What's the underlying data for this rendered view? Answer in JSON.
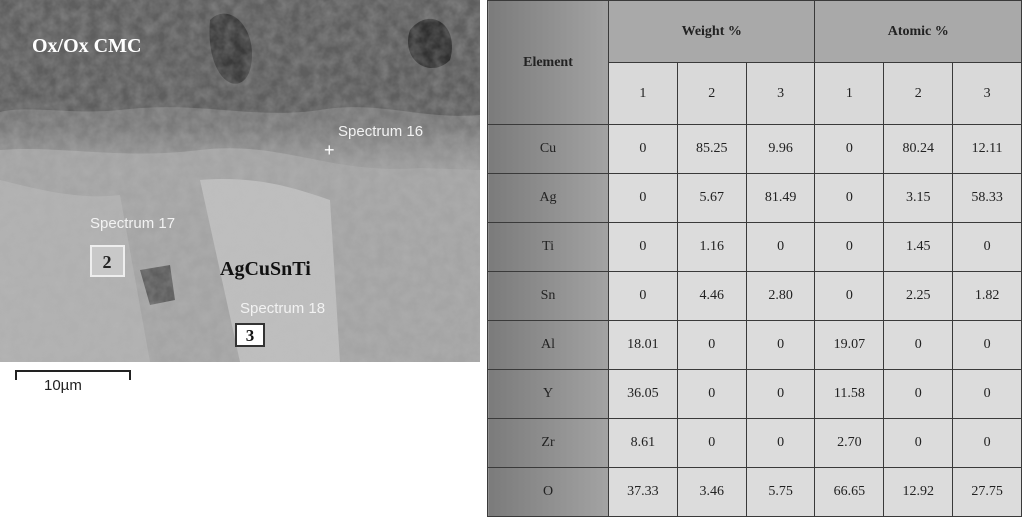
{
  "image": {
    "matrix_label": "Ox/Ox CMC",
    "filler_label": "AgCuSnTi",
    "spectra": [
      {
        "name": "Spectrum 16",
        "marker": "+"
      },
      {
        "name": "Spectrum 17",
        "marker": "2"
      },
      {
        "name": "Spectrum 18",
        "marker": "3"
      }
    ],
    "scale_bar": "10µm"
  },
  "table": {
    "header": {
      "element": "Element",
      "groups": [
        {
          "name": "Weight %",
          "columns": [
            "1",
            "2",
            "3"
          ]
        },
        {
          "name": "Atomic %",
          "columns": [
            "1",
            "2",
            "3"
          ]
        }
      ]
    },
    "rows": [
      [
        "Cu",
        "0",
        "85.25",
        "9.96",
        "0",
        "80.24",
        "12.11"
      ],
      [
        "Ag",
        "0",
        "5.67",
        "81.49",
        "0",
        "3.15",
        "58.33"
      ],
      [
        "Ti",
        "0",
        "1.16",
        "0",
        "0",
        "1.45",
        "0"
      ],
      [
        "Sn",
        "0",
        "4.46",
        "2.80",
        "0",
        "2.25",
        "1.82"
      ],
      [
        "Al",
        "18.01",
        "0",
        "0",
        "19.07",
        "0",
        "0"
      ],
      [
        "Y",
        "36.05",
        "0",
        "0",
        "11.58",
        "0",
        "0"
      ],
      [
        "Zr",
        "8.61",
        "0",
        "0",
        "2.70",
        "0",
        "0"
      ],
      [
        "O",
        "37.33",
        "3.46",
        "5.75",
        "66.65",
        "12.92",
        "27.75"
      ]
    ]
  }
}
